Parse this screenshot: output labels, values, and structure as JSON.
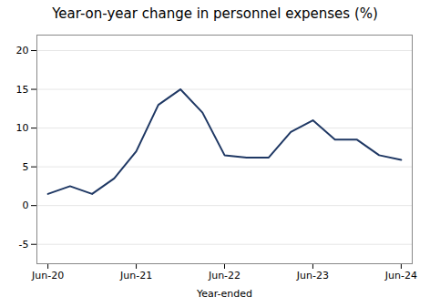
{
  "chart_data": {
    "type": "line",
    "title": "Year-on-year change in personnel expenses (%)",
    "xlabel": "Year-ended",
    "x": [
      0,
      1,
      2,
      3,
      4,
      5,
      6,
      7,
      8,
      9,
      10,
      11,
      12,
      13,
      14,
      15,
      16
    ],
    "values": [
      1.5,
      2.5,
      1.5,
      3.5,
      7.0,
      13.0,
      15.0,
      12.0,
      6.5,
      6.2,
      6.2,
      9.5,
      11.0,
      8.5,
      8.5,
      6.5,
      5.9
    ],
    "color": "#1F3864",
    "xlim": [
      -0.5,
      16.5
    ],
    "xticks": [
      {
        "value": 0,
        "label": "Jun-20"
      },
      {
        "value": 4,
        "label": "Jun-21"
      },
      {
        "value": 8,
        "label": "Jun-22"
      },
      {
        "value": 12,
        "label": "Jun-23"
      },
      {
        "value": 16,
        "label": "Jun-24"
      }
    ],
    "ylim": [
      -7.5,
      22
    ],
    "yticks": [
      -5,
      0,
      5,
      10,
      15,
      20
    ],
    "grid": true
  }
}
